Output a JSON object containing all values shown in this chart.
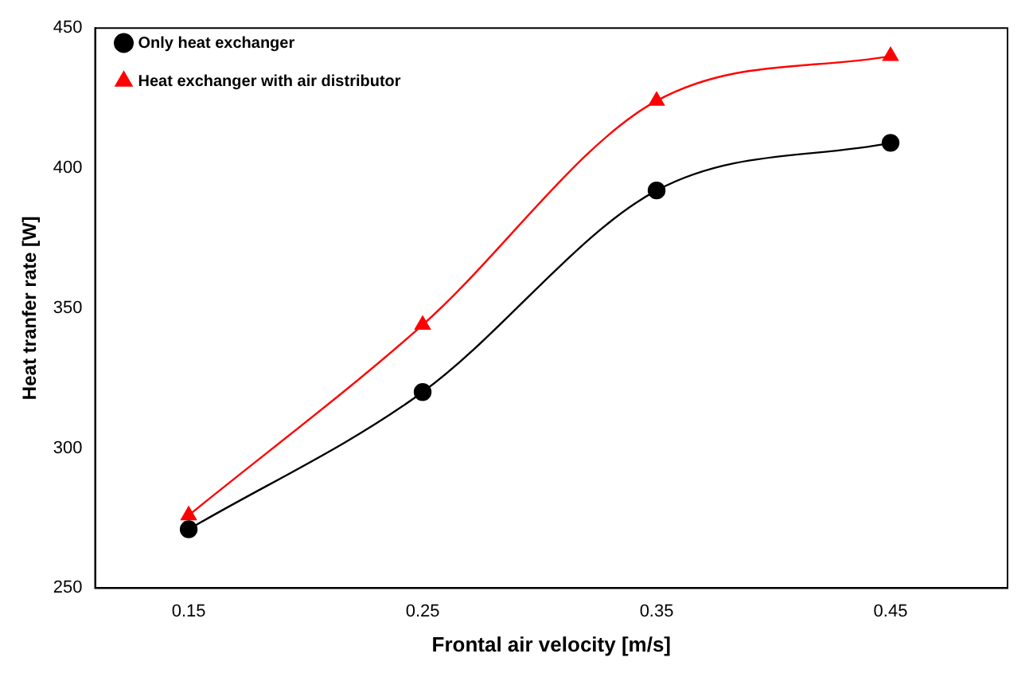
{
  "chart_data": {
    "type": "line",
    "xlabel": "Frontal air velocity [m/s]",
    "ylabel": "Heat tranfer rate [W]",
    "x": [
      0.15,
      0.25,
      0.35,
      0.45
    ],
    "series": [
      {
        "name": "Only heat exchanger",
        "color": "#000000",
        "marker": "circle",
        "values": [
          271,
          320,
          392,
          409
        ]
      },
      {
        "name": "Heat exchanger with air distributor",
        "color": "#ff0000",
        "marker": "triangle",
        "values": [
          276,
          344,
          424,
          440
        ]
      }
    ],
    "xlim": [
      0.11,
      0.5
    ],
    "xticks": [
      {
        "value": 0.15,
        "label": "0.15"
      },
      {
        "value": 0.25,
        "label": "0.25"
      },
      {
        "value": 0.35,
        "label": "0.35"
      },
      {
        "value": 0.45,
        "label": "0.45"
      }
    ],
    "ylim": [
      250,
      450
    ],
    "yticks": [
      250,
      300,
      350,
      400,
      450
    ],
    "grid": false,
    "legend": "top left",
    "line_style": "solid"
  }
}
